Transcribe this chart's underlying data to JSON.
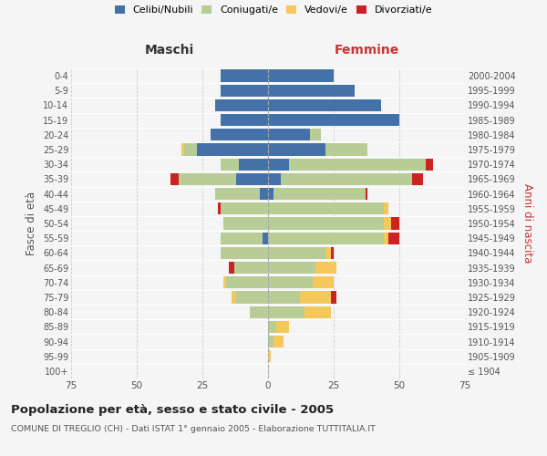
{
  "age_groups": [
    "100+",
    "95-99",
    "90-94",
    "85-89",
    "80-84",
    "75-79",
    "70-74",
    "65-69",
    "60-64",
    "55-59",
    "50-54",
    "45-49",
    "40-44",
    "35-39",
    "30-34",
    "25-29",
    "20-24",
    "15-19",
    "10-14",
    "5-9",
    "0-4"
  ],
  "birth_years": [
    "≤ 1904",
    "1905-1909",
    "1910-1914",
    "1915-1919",
    "1920-1924",
    "1925-1929",
    "1930-1934",
    "1935-1939",
    "1940-1944",
    "1945-1949",
    "1950-1954",
    "1955-1959",
    "1960-1964",
    "1965-1969",
    "1970-1974",
    "1975-1979",
    "1980-1984",
    "1985-1989",
    "1990-1994",
    "1995-1999",
    "2000-2004"
  ],
  "colors": {
    "celibi": "#4472a8",
    "coniugati": "#b8cc96",
    "vedovi": "#f5c85c",
    "divorziati": "#cc2222"
  },
  "maschi": {
    "celibi": [
      0,
      0,
      0,
      0,
      0,
      0,
      0,
      0,
      0,
      2,
      0,
      0,
      3,
      12,
      11,
      27,
      22,
      18,
      20,
      18,
      18
    ],
    "coniugati": [
      0,
      0,
      0,
      0,
      7,
      12,
      16,
      13,
      18,
      16,
      17,
      18,
      17,
      22,
      7,
      5,
      0,
      0,
      0,
      0,
      0
    ],
    "vedovi": [
      0,
      0,
      0,
      0,
      0,
      2,
      1,
      0,
      0,
      0,
      0,
      0,
      0,
      0,
      0,
      1,
      0,
      0,
      0,
      0,
      0
    ],
    "divorziati": [
      0,
      0,
      0,
      0,
      0,
      0,
      0,
      2,
      0,
      0,
      0,
      1,
      0,
      3,
      0,
      0,
      0,
      0,
      0,
      0,
      0
    ]
  },
  "femmine": {
    "celibi": [
      0,
      0,
      0,
      0,
      0,
      0,
      0,
      0,
      0,
      0,
      0,
      0,
      2,
      5,
      8,
      22,
      16,
      50,
      43,
      33,
      25
    ],
    "coniugati": [
      0,
      0,
      2,
      3,
      14,
      12,
      17,
      18,
      22,
      44,
      44,
      44,
      35,
      50,
      52,
      16,
      4,
      0,
      0,
      0,
      0
    ],
    "vedovi": [
      0,
      1,
      4,
      5,
      10,
      12,
      8,
      8,
      2,
      2,
      3,
      2,
      0,
      0,
      0,
      0,
      0,
      0,
      0,
      0,
      0
    ],
    "divorziati": [
      0,
      0,
      0,
      0,
      0,
      2,
      0,
      0,
      1,
      4,
      3,
      0,
      1,
      4,
      3,
      0,
      0,
      0,
      0,
      0,
      0
    ]
  },
  "xlim": 75,
  "title": "Popolazione per età, sesso e stato civile - 2005",
  "subtitle": "COMUNE DI TREGLIO (CH) - Dati ISTAT 1° gennaio 2005 - Elaborazione TUTTITALIA.IT",
  "xlabel_left": "Maschi",
  "xlabel_right": "Femmine",
  "ylabel_left": "Fasce di età",
  "ylabel_right": "Anni di nascita",
  "legend_labels": [
    "Celibi/Nubili",
    "Coniugati/e",
    "Vedovi/e",
    "Divorziati/e"
  ],
  "background_color": "#f5f5f5",
  "grid_color": "#cccccc"
}
